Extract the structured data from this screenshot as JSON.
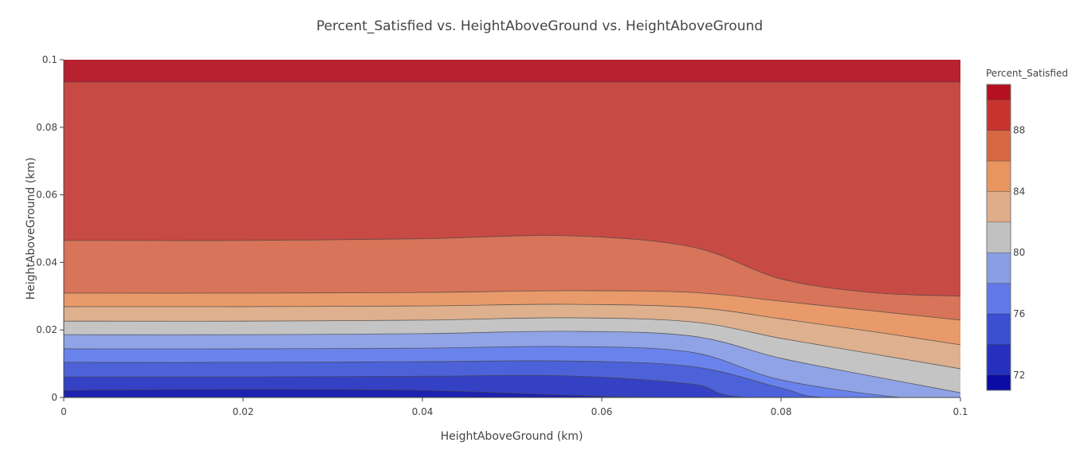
{
  "chart_data": {
    "type": "contour",
    "title": "Percent_Satisfied vs. HeightAboveGround vs. HeightAboveGround",
    "xlabel": "HeightAboveGround (km)",
    "ylabel": "HeightAboveGround (km)",
    "xlim": [
      0,
      0.1
    ],
    "ylim": [
      0,
      0.1
    ],
    "x_ticks": [
      "0",
      "0.02",
      "0.04",
      "0.06",
      "0.08",
      "0.1"
    ],
    "x_tick_values": [
      0,
      0.02,
      0.04,
      0.06,
      0.08,
      0.1
    ],
    "y_ticks": [
      "0",
      "0.02",
      "0.04",
      "0.06",
      "0.08",
      "0.1"
    ],
    "y_tick_values": [
      0,
      0.02,
      0.04,
      0.06,
      0.08,
      0.1
    ],
    "colorbar": {
      "title": "Percent_Satisfied",
      "range": [
        71,
        91
      ],
      "ticks": [
        "72",
        "76",
        "80",
        "84",
        "88"
      ],
      "tick_values": [
        72,
        76,
        80,
        84,
        88
      ],
      "bins": [
        {
          "from": 71,
          "to": 72,
          "color": "#0b0ba6"
        },
        {
          "from": 72,
          "to": 74,
          "color": "#2530bf"
        },
        {
          "from": 74,
          "to": 76,
          "color": "#3b4fd3"
        },
        {
          "from": 76,
          "to": 78,
          "color": "#6078e8"
        },
        {
          "from": 78,
          "to": 80,
          "color": "#8a9ee6"
        },
        {
          "from": 80,
          "to": 82,
          "color": "#c1c1c1"
        },
        {
          "from": 82,
          "to": 84,
          "color": "#dfad8a"
        },
        {
          "from": 84,
          "to": 86,
          "color": "#e8955f"
        },
        {
          "from": 86,
          "to": 88,
          "color": "#d76844"
        },
        {
          "from": 88,
          "to": 90,
          "color": "#c7342f"
        },
        {
          "from": 90,
          "to": 91,
          "color": "#b5101f"
        }
      ]
    },
    "base_color": "#1d22b0",
    "contours": [
      {
        "level": 72,
        "fill_above": "#3541c4",
        "x": [
          0,
          0.02,
          0.04,
          0.056,
          0.067,
          0.1
        ],
        "y": [
          0.0021,
          0.0024,
          0.0021,
          0.0007,
          0,
          0
        ]
      },
      {
        "level": 74,
        "fill_above": "#4d62d8",
        "x": [
          0,
          0.02,
          0.04,
          0.056,
          0.07,
          0.0764,
          0.1
        ],
        "y": [
          0.0061,
          0.0061,
          0.0063,
          0.0064,
          0.004,
          0,
          0
        ]
      },
      {
        "level": 76,
        "fill_above": "#6a83ec",
        "x": [
          0,
          0.02,
          0.04,
          0.056,
          0.07,
          0.08,
          0.0849,
          0.1
        ],
        "y": [
          0.0104,
          0.0104,
          0.0106,
          0.0108,
          0.0092,
          0.0028,
          0,
          0
        ]
      },
      {
        "level": 78,
        "fill_above": "#90a3e6",
        "x": [
          0,
          0.02,
          0.04,
          0.056,
          0.07,
          0.08,
          0.0933,
          0.1
        ],
        "y": [
          0.0144,
          0.0144,
          0.0146,
          0.0151,
          0.0134,
          0.0052,
          0,
          0
        ]
      },
      {
        "level": 80,
        "fill_above": "#c4c4c4",
        "x": [
          0,
          0.02,
          0.04,
          0.056,
          0.07,
          0.08,
          0.09,
          0.1
        ],
        "y": [
          0.0186,
          0.0186,
          0.0189,
          0.0196,
          0.0182,
          0.0116,
          0.0064,
          0.0014
        ]
      },
      {
        "level": 82,
        "fill_above": "#deb08e",
        "x": [
          0,
          0.02,
          0.04,
          0.056,
          0.07,
          0.08,
          0.09,
          0.1
        ],
        "y": [
          0.0226,
          0.0226,
          0.0229,
          0.0236,
          0.0224,
          0.0175,
          0.013,
          0.0085
        ]
      },
      {
        "level": 84,
        "fill_above": "#e89a6a",
        "x": [
          0,
          0.02,
          0.04,
          0.056,
          0.07,
          0.08,
          0.09,
          0.1
        ],
        "y": [
          0.0269,
          0.0269,
          0.0271,
          0.0276,
          0.0267,
          0.0233,
          0.0196,
          0.0156
        ]
      },
      {
        "level": 86,
        "fill_above": "#d77459",
        "x": [
          0,
          0.02,
          0.04,
          0.056,
          0.07,
          0.08,
          0.09,
          0.1
        ],
        "y": [
          0.0309,
          0.0309,
          0.0311,
          0.0316,
          0.0311,
          0.0285,
          0.0257,
          0.0229
        ]
      },
      {
        "level": 88,
        "fill_above": "#c84a44",
        "x": [
          0,
          0.02,
          0.04,
          0.056,
          0.07,
          0.08,
          0.09,
          0.1
        ],
        "y": [
          0.0465,
          0.0465,
          0.047,
          0.0479,
          0.0446,
          0.0351,
          0.0311,
          0.03
        ]
      },
      {
        "level": 90,
        "fill_above": "#b82130",
        "x": [
          0,
          0.1
        ],
        "y": [
          0.0934,
          0.0934
        ]
      }
    ]
  }
}
